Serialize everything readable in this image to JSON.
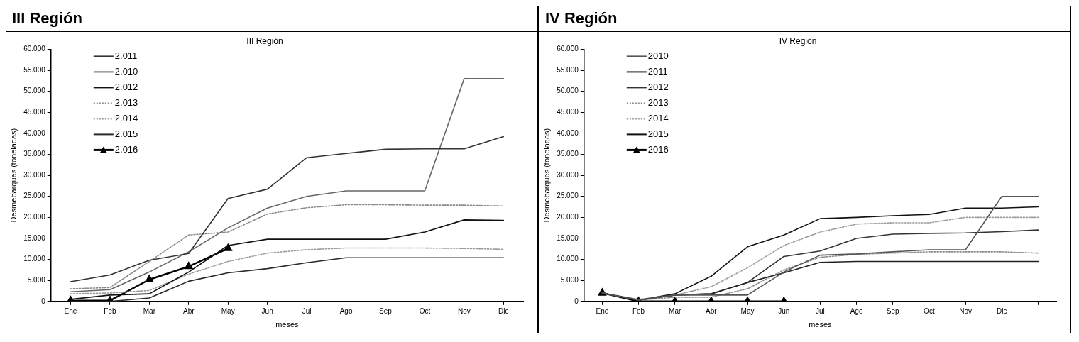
{
  "chart_data": [
    {
      "type": "line",
      "title": "III Región",
      "subtitle": "III Región",
      "xlabel": "meses",
      "ylabel": "Desmebarques (toneladas)",
      "categories": [
        "Ene",
        "Feb",
        "Mar",
        "Abr",
        "May",
        "Jun",
        "Jul",
        "Ago",
        "Sep",
        "Oct",
        "Nov",
        "Dic"
      ],
      "ylim": [
        0,
        60000
      ],
      "yticks": [
        {
          "value": 0,
          "label": "0"
        },
        {
          "value": 5000,
          "label": "5.000"
        },
        {
          "value": 10000,
          "label": "10.000"
        },
        {
          "value": 15000,
          "label": "15.000"
        },
        {
          "value": 20000,
          "label": "20.000"
        },
        {
          "value": 25000,
          "label": "25.000"
        },
        {
          "value": 30000,
          "label": "30.000"
        },
        {
          "value": 35000,
          "label": "35.000"
        },
        {
          "value": 40000,
          "label": "40.000"
        },
        {
          "value": 45000,
          "label": "45.000"
        },
        {
          "value": 50000,
          "label": "50.000"
        },
        {
          "value": 55000,
          "label": "55.000"
        },
        {
          "value": 60000,
          "label": "60.000"
        }
      ],
      "grid": false,
      "legend": "top left",
      "marker": "none",
      "line_style": "solid",
      "series": [
        {
          "name": "2.011",
          "color": "#333333",
          "values": [
            4700,
            6300,
            9800,
            11400,
            24500,
            26700,
            34200,
            35200,
            36200,
            36300,
            36300,
            39200
          ]
        },
        {
          "name": "2.010",
          "color": "#666666",
          "values": [
            2300,
            2800,
            7000,
            11800,
            17500,
            22200,
            25000,
            26300,
            26300,
            26300,
            53000,
            53000
          ]
        },
        {
          "name": "2.012",
          "color": "#111111",
          "values": [
            500,
            1500,
            1800,
            7000,
            13300,
            14800,
            14800,
            14800,
            14800,
            16500,
            19400,
            19300
          ]
        },
        {
          "name": "2.013",
          "color": "#8a8a8a",
          "line_style": "dotted",
          "values": [
            3000,
            3300,
            9500,
            15800,
            16500,
            20800,
            22300,
            23000,
            23000,
            22900,
            22900,
            22700
          ]
        },
        {
          "name": "2.014",
          "color": "#9a9a9a",
          "line_style": "dotted",
          "values": [
            1800,
            2000,
            2600,
            6500,
            9500,
            11500,
            12300,
            12700,
            12700,
            12700,
            12600,
            12400
          ]
        },
        {
          "name": "2.015",
          "color": "#2a2a2a",
          "values": [
            0,
            0,
            800,
            4800,
            6800,
            7800,
            9200,
            10400,
            10400,
            10400,
            10400,
            10400
          ]
        },
        {
          "name": "2.016",
          "color": "#000000",
          "marker": "triangle",
          "values": [
            200,
            200,
            5200,
            8300,
            12600,
            null,
            null,
            null,
            null,
            null,
            null,
            null
          ]
        }
      ]
    },
    {
      "type": "line",
      "title": "IV Región",
      "subtitle": "IV Región",
      "xlabel": "meses",
      "ylabel": "Desmebarques (toneladas)",
      "categories": [
        "Ene",
        "Feb",
        "Mar",
        "Abr",
        "May",
        "Jun",
        "Jul",
        "Ago",
        "Sep",
        "Oct",
        "Nov",
        "Dic",
        null
      ],
      "ylim": [
        0,
        60000
      ],
      "yticks": [
        {
          "value": 0,
          "label": "0"
        },
        {
          "value": 5000,
          "label": "5.000"
        },
        {
          "value": 10000,
          "label": "10.000"
        },
        {
          "value": 15000,
          "label": "15.000"
        },
        {
          "value": 20000,
          "label": "20.000"
        },
        {
          "value": 25000,
          "label": "25.000"
        },
        {
          "value": 30000,
          "label": "30.000"
        },
        {
          "value": 35000,
          "label": "35.000"
        },
        {
          "value": 40000,
          "label": "40.000"
        },
        {
          "value": 45000,
          "label": "45.000"
        },
        {
          "value": 50000,
          "label": "50.000"
        },
        {
          "value": 55000,
          "label": "55.000"
        },
        {
          "value": 60000,
          "label": "60.000"
        }
      ],
      "grid": false,
      "legend": "top left",
      "marker": "none",
      "line_style": "solid",
      "series": [
        {
          "name": "2010",
          "color": "#555555",
          "values": [
            2000,
            300,
            1500,
            1500,
            1500,
            7000,
            11000,
            11300,
            11800,
            12300,
            12300,
            25000,
            25000
          ]
        },
        {
          "name": "2011",
          "color": "#222222",
          "values": [
            2000,
            300,
            1500,
            1800,
            4500,
            6800,
            9300,
            9500,
            9500,
            9500,
            9500,
            9500,
            9500
          ]
        },
        {
          "name": "2012",
          "color": "#333333",
          "values": [
            2000,
            300,
            1500,
            1800,
            4500,
            10700,
            12000,
            15000,
            16000,
            16200,
            16300,
            16600,
            17000
          ]
        },
        {
          "name": "2013",
          "color": "#8a8a8a",
          "line_style": "dotted",
          "values": [
            2000,
            300,
            1000,
            1000,
            3000,
            7500,
            10500,
            11200,
            11500,
            11800,
            11800,
            11800,
            11500
          ]
        },
        {
          "name": "2014",
          "color": "#9a9a9a",
          "line_style": "dotted",
          "values": [
            2000,
            500,
            1500,
            3500,
            8000,
            13300,
            16500,
            18400,
            18700,
            18700,
            20000,
            20000,
            20000
          ]
        },
        {
          "name": "2015",
          "color": "#111111",
          "values": [
            2000,
            300,
            1800,
            6000,
            13000,
            15800,
            19700,
            20000,
            20400,
            20700,
            22200,
            22200,
            22500
          ]
        },
        {
          "name": "2016",
          "color": "#000000",
          "marker": "triangle",
          "values": [
            2000,
            0,
            0,
            0,
            0,
            0,
            null,
            null,
            null,
            null,
            null,
            null,
            null
          ]
        }
      ]
    }
  ]
}
